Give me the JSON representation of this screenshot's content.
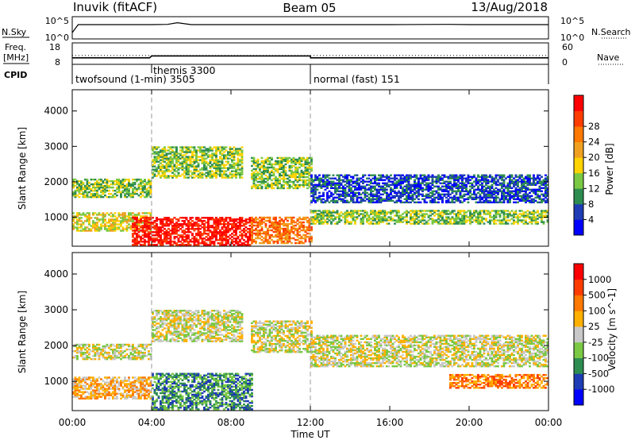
{
  "header": {
    "station": "Inuvik (fitACF)",
    "beam": "Beam 05",
    "date": "13/Aug/2018"
  },
  "params": {
    "nsky_label": "N.Sky",
    "nsearch_label": "N.Search",
    "nsky_ticks": [
      "10^5",
      "10^0"
    ],
    "nsearch_ticks": [
      "10^5",
      "10^0"
    ],
    "freq_label": [
      "Freq.",
      "[MHz]"
    ],
    "freq_ticks": [
      "18",
      "8"
    ],
    "nave_label": "Nave",
    "nave_ticks": [
      "60",
      "0"
    ],
    "cpid_label": "CPID"
  },
  "chart_data": [
    {
      "type": "line",
      "id": "nsky-nsearch",
      "ylim": [
        1,
        100000
      ],
      "x_hours": [
        0,
        0.3,
        2,
        4,
        4.8,
        5.3,
        6,
        8,
        12,
        16,
        19,
        20,
        24
      ],
      "series": [
        {
          "name": "N.Sky",
          "values": [
            30,
            10000,
            10000,
            10000,
            12000,
            40000,
            10000,
            10000,
            10000,
            10000,
            12000,
            10000,
            10000
          ]
        }
      ]
    },
    {
      "type": "line",
      "id": "freq-nave",
      "series": [
        {
          "name": "Freq.",
          "x_hours": [
            0,
            3.9,
            4.0,
            12.0,
            12.01,
            24
          ],
          "values": [
            10.3,
            10.3,
            12.0,
            12.0,
            10.3,
            10.3
          ]
        },
        {
          "name": "Nave",
          "x_hours": [
            0,
            24
          ],
          "values": [
            32,
            32
          ]
        }
      ]
    },
    {
      "type": "table",
      "id": "cpid",
      "segments": [
        {
          "label": "twofsound (1-min) 3505",
          "start_hour": 0,
          "end_hour": 12
        },
        {
          "label": "themis 3300",
          "start_hour": 4,
          "end_hour": 4
        },
        {
          "label": "normal (fast) 151",
          "start_hour": 12,
          "end_hour": 24
        }
      ]
    },
    {
      "type": "heatmap",
      "id": "power",
      "xlabel": "",
      "ylabel": "Slant Range [km]",
      "xlim": [
        0,
        24
      ],
      "ylim": [
        180,
        4600
      ],
      "yticks": [
        "1000",
        "2000",
        "3000",
        "4000"
      ],
      "colorbar": {
        "label": "Power [dB]",
        "ticks": [
          "4",
          "8",
          "12",
          "16",
          "20",
          "24",
          "28"
        ],
        "colors": [
          "#0000ff",
          "#1e3cb4",
          "#2d8c50",
          "#7ac843",
          "#ffd200",
          "#f0a020",
          "#ff7800",
          "#ff3c00",
          "#ff0000"
        ]
      },
      "bands": [
        {
          "t0": 0,
          "t1": 4,
          "r0": 1550,
          "r1": 2050,
          "level": 3
        },
        {
          "t0": 0,
          "t1": 4,
          "r0": 600,
          "r1": 1100,
          "level": 4
        },
        {
          "t0": 3,
          "t1": 9,
          "r0": 200,
          "r1": 1000,
          "level": 8
        },
        {
          "t0": 4,
          "t1": 8.5,
          "r0": 2100,
          "r1": 3000,
          "level": 3
        },
        {
          "t0": 9,
          "t1": 12,
          "r0": 1800,
          "r1": 2700,
          "level": 3
        },
        {
          "t0": 9,
          "t1": 12,
          "r0": 250,
          "r1": 1000,
          "level": 6
        },
        {
          "t0": 12,
          "t1": 24,
          "r0": 1400,
          "r1": 2200,
          "level": 1
        },
        {
          "t0": 12,
          "t1": 24,
          "r0": 800,
          "r1": 1200,
          "level": 3
        }
      ]
    },
    {
      "type": "heatmap",
      "id": "velocity",
      "xlabel": "Time UT",
      "ylabel": "Slant Range [km]",
      "xlim": [
        0,
        24
      ],
      "ylim": [
        180,
        4600
      ],
      "xticks": [
        "00:00",
        "04:00",
        "08:00",
        "12:00",
        "16:00",
        "20:00",
        "00:00"
      ],
      "yticks": [
        "1000",
        "2000",
        "3000",
        "4000"
      ],
      "colorbar": {
        "label": "Velocity [m s^-1]",
        "ticks": [
          "1000",
          "500",
          "100",
          "25",
          "-25",
          "-100",
          "-500",
          "-1000"
        ],
        "colors": [
          "#0000ff",
          "#1e3cb4",
          "#2d8c50",
          "#7ac843",
          "#c8c8c8",
          "#ffb000",
          "#ff7800",
          "#ff3c00",
          "#ff0000"
        ]
      },
      "bands": [
        {
          "t0": 0,
          "t1": 4,
          "r0": 1600,
          "r1": 2050,
          "level": 4
        },
        {
          "t0": 0,
          "t1": 4,
          "r0": 500,
          "r1": 1100,
          "level": 5
        },
        {
          "t0": 4,
          "t1": 8.5,
          "r0": 2100,
          "r1": 3000,
          "level": 4
        },
        {
          "t0": 4,
          "t1": 9,
          "r0": 200,
          "r1": 1200,
          "level": 2
        },
        {
          "t0": 9,
          "t1": 12,
          "r0": 1800,
          "r1": 2700,
          "level": 4
        },
        {
          "t0": 12,
          "t1": 24,
          "r0": 1400,
          "r1": 2300,
          "level": 4
        },
        {
          "t0": 19,
          "t1": 24,
          "r0": 800,
          "r1": 1200,
          "level": 6
        }
      ]
    }
  ]
}
